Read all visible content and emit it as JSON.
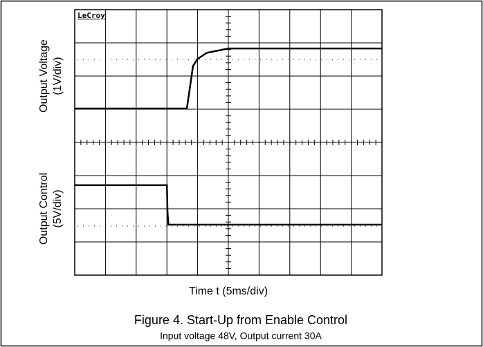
{
  "chart_data": {
    "type": "line",
    "brand": "LeCroy",
    "xlabel": "Time t (5ms/div)",
    "title": "Figure 4. Start-Up from Enable Control",
    "subtitle": "Input voltage 48V, Output current 30A",
    "xlim": [
      0,
      10
    ],
    "ylim": [
      0,
      8
    ],
    "xticks": [
      0,
      1,
      2,
      3,
      4,
      5,
      6,
      7,
      8,
      9,
      10
    ],
    "yticks": [
      0,
      1,
      2,
      3,
      4,
      5,
      6,
      7,
      8
    ],
    "grid": true,
    "series": [
      {
        "name": "Output Voltage",
        "scale": "(1V/div)",
        "color": "#000000",
        "x": [
          0,
          3.65,
          3.85,
          4.0,
          4.3,
          5.0,
          10
        ],
        "values": [
          5.02,
          5.02,
          6.3,
          6.52,
          6.7,
          6.83,
          6.83
        ]
      },
      {
        "name": "Output Control",
        "scale": "(5V/div)",
        "color": "#000000",
        "x": [
          0,
          3.0,
          3.02,
          3.05,
          3.1,
          10
        ],
        "values": [
          2.71,
          2.71,
          1.9,
          1.52,
          1.52,
          1.52
        ]
      }
    ]
  }
}
